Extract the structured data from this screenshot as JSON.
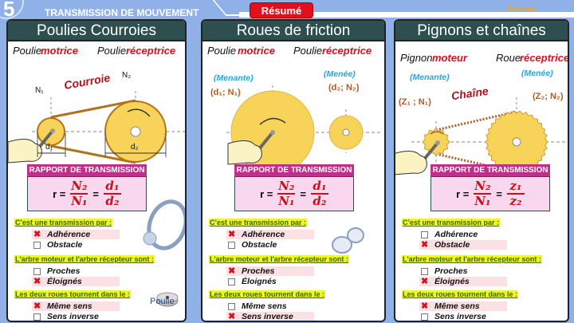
{
  "header": {
    "number": "5",
    "title": "TRANSMISSION DE MOUVEMENT",
    "badge": "Résumé",
    "logo": "Soudanisami.tn",
    "logo_a": "Soudani",
    "logo_b": "sami.tn"
  },
  "colors": {
    "background": "#8fb1e8",
    "panel_header": "#2d4f50",
    "badge": "#e0101e",
    "ratio_header": "#c0308a",
    "ratio_box": "#f9d8ef",
    "question_highlight": "#eef52a",
    "accent_red": "#d8101c",
    "wheel": "#f7d35a"
  },
  "ratio_title": "RAPPORT DE TRANSMISSION",
  "q1": "C’est une transmission par :",
  "q2": "L'arbre moteur et l'arbre récepteur sont :",
  "q3": "Les deux roues tournent dans le :",
  "o": {
    "adherence": "Adhérence",
    "obstacle": "Obstacle",
    "proches": "Proches",
    "eloignes": "Éloignés",
    "meme": "Même sens",
    "inverse": "Sens inverse"
  },
  "panels": [
    {
      "title": "Poulies Courroies",
      "left_a": "Poulie",
      "left_b": "motrice",
      "right_a": "Poulie",
      "right_b": "réceptrice",
      "link": "Courroie",
      "n1": "N₁",
      "n2": "N₂",
      "d1": "d₁",
      "d2": "d₂",
      "ratio": {
        "r": "r =",
        "a_num": "N₂",
        "a_den": "N₁",
        "eq": "=",
        "b_num": "d₁",
        "b_den": "d₂"
      },
      "checks": {
        "adherence": true,
        "obstacle": false,
        "proches": false,
        "eloignes": true,
        "meme": true,
        "inverse": false
      },
      "caption": "Poulie"
    },
    {
      "title": "Roues de friction",
      "left_a": "Poulie",
      "left_b": "motrice",
      "right_a": "Poulie",
      "right_b": "réceptrice",
      "menante": "(Menante)",
      "menee": "(Menée)",
      "lp": "(d₁; N₁)",
      "rp": "(d₂; N₂)",
      "ratio": {
        "r": "r =",
        "a_num": "N₂",
        "a_den": "N₁",
        "eq": "=",
        "b_num": "d₁",
        "b_den": "d₂"
      },
      "checks": {
        "adherence": true,
        "obstacle": false,
        "proches": true,
        "eloignes": false,
        "meme": false,
        "inverse": true
      }
    },
    {
      "title": "Pignons et chaînes",
      "left_a": "Pignon",
      "left_b": "moteur",
      "right_a": "Roue",
      "right_b": "réceptrice",
      "menante": "(Menante)",
      "menee": "(Menée)",
      "lp": "(Z₁ ; N₁)",
      "rp": "(Z₂; N₂)",
      "link": "Chaîne",
      "ratio": {
        "r": "r =",
        "a_num": "N₂",
        "a_den": "N₁",
        "eq": "=",
        "b_num": "z₁",
        "b_den": "z₂"
      },
      "checks": {
        "adherence": false,
        "obstacle": true,
        "proches": false,
        "eloignes": true,
        "meme": true,
        "inverse": false
      }
    }
  ]
}
